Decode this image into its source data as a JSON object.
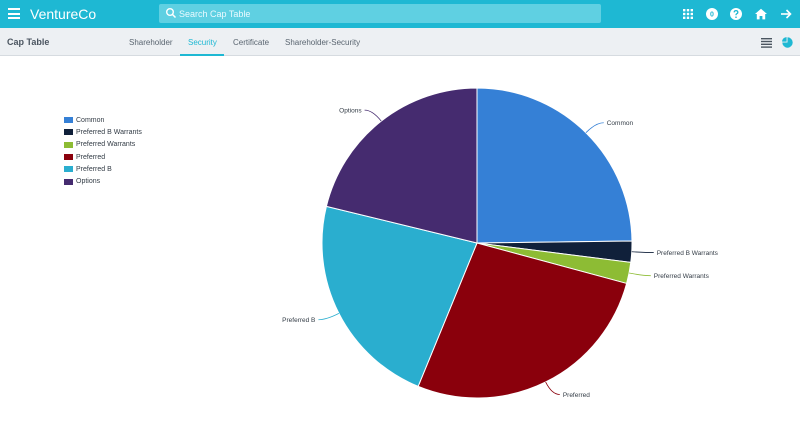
{
  "app": {
    "name": "VentureCo"
  },
  "search": {
    "placeholder": "Search Cap Table"
  },
  "topbar": {
    "badge_count": "0",
    "icons": [
      "apps-grid-icon",
      "help-icon",
      "home-icon",
      "logout-arrow-icon"
    ]
  },
  "header": {
    "title": "Cap Table",
    "tabs": [
      {
        "label": "Shareholder"
      },
      {
        "label": "Security",
        "active": true
      },
      {
        "label": "Certificate"
      },
      {
        "label": "Shareholder-Security"
      }
    ],
    "view_icons": [
      "list-view-icon",
      "chart-view-icon"
    ]
  },
  "colors": {
    "accent": "#1eb8d3"
  },
  "chart_data": {
    "type": "pie",
    "title": "",
    "legend_position": "left",
    "slices": [
      {
        "label": "Common",
        "value": 24.8,
        "color": "#3580d6"
      },
      {
        "label": "Preferred B Warrants",
        "value": 2.2,
        "color": "#10203a"
      },
      {
        "label": "Preferred Warrants",
        "value": 2.2,
        "color": "#8dbc34"
      },
      {
        "label": "Preferred",
        "value": 27.0,
        "color": "#8a000c"
      },
      {
        "label": "Preferred B",
        "value": 22.6,
        "color": "#2aaecf"
      },
      {
        "label": "Options",
        "value": 21.2,
        "color": "#452b6f"
      }
    ]
  }
}
